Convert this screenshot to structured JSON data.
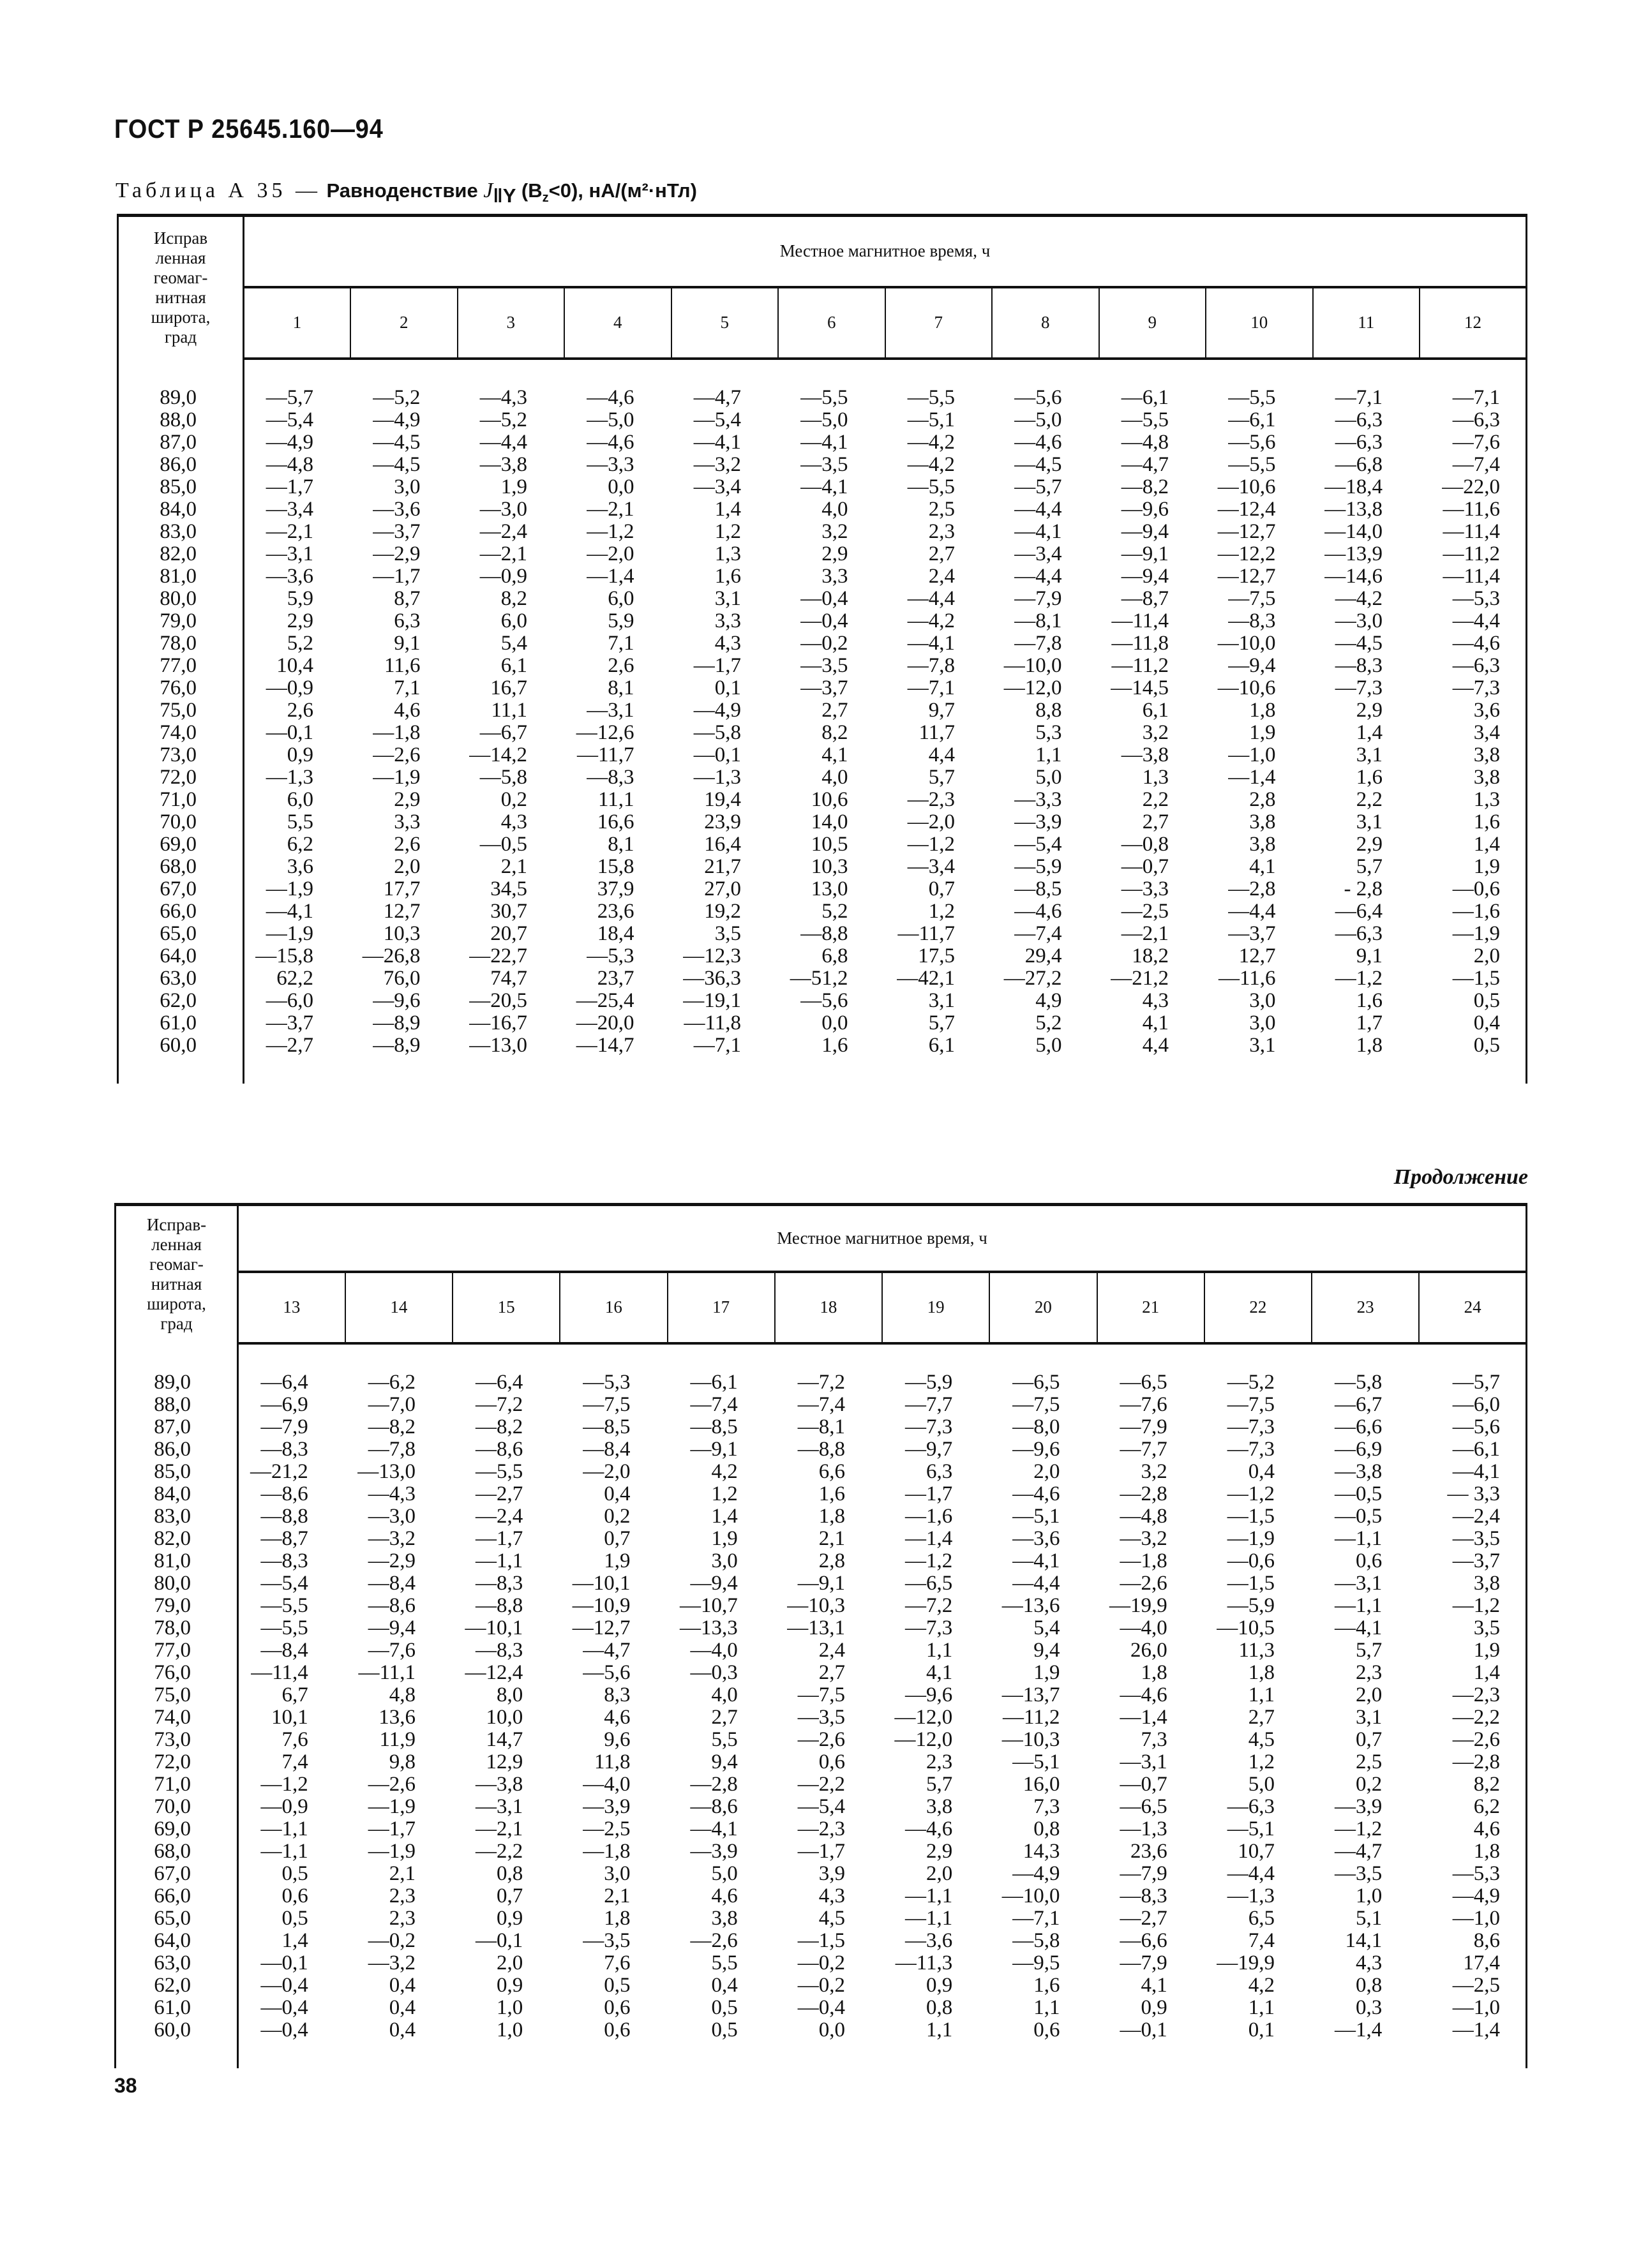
{
  "document": {
    "title": "ГОСТ Р 25645.160—94",
    "page_number": "38",
    "continuation": "Продолжение"
  },
  "caption": {
    "prefix": "Таблица А 35 —",
    "title": "Равноденствие",
    "symbol": "J",
    "symbol_sub": "‖Y",
    "cond_open": "(B",
    "cond_sub": "z",
    "cond_rest": "<0),",
    "units": "нА/(м²·нТл)"
  },
  "table1": {
    "lat_header": "Исправ\nленная\nгеомаг-\nнитная\nширота,\nград",
    "group_header": "Местное магнитное время, ч",
    "hours": [
      "1",
      "2",
      "3",
      "4",
      "5",
      "6",
      "7",
      "8",
      "9",
      "10",
      "11",
      "12"
    ],
    "rows": [
      {
        "lat": "89,0",
        "values": [
          "—5,7",
          "—5,2",
          "—4,3",
          "—4,6",
          "—4,7",
          "—5,5",
          "—5,5",
          "—5,6",
          "—6,1",
          "—5,5",
          "—7,1",
          "—7,1"
        ]
      },
      {
        "lat": "88,0",
        "values": [
          "—5,4",
          "—4,9",
          "—5,2",
          "—5,0",
          "—5,4",
          "—5,0",
          "—5,1",
          "—5,0",
          "—5,5",
          "—6,1",
          "—6,3",
          "—6,3"
        ]
      },
      {
        "lat": "87,0",
        "values": [
          "—4,9",
          "—4,5",
          "—4,4",
          "—4,6",
          "—4,1",
          "—4,1",
          "—4,2",
          "—4,6",
          "—4,8",
          "—5,6",
          "—6,3",
          "—7,6"
        ]
      },
      {
        "lat": "86,0",
        "values": [
          "—4,8",
          "—4,5",
          "—3,8",
          "—3,3",
          "—3,2",
          "—3,5",
          "—4,2",
          "—4,5",
          "—4,7",
          "—5,5",
          "—6,8",
          "—7,4"
        ]
      },
      {
        "lat": "85,0",
        "values": [
          "—1,7",
          "3,0",
          "1,9",
          "0,0",
          "—3,4",
          "—4,1",
          "—5,5",
          "—5,7",
          "—8,2",
          "—10,6",
          "—18,4",
          "—22,0"
        ]
      },
      {
        "lat": "84,0",
        "values": [
          "—3,4",
          "—3,6",
          "—3,0",
          "—2,1",
          "1,4",
          "4,0",
          "2,5",
          "—4,4",
          "—9,6",
          "—12,4",
          "—13,8",
          "—11,6"
        ]
      },
      {
        "lat": "83,0",
        "values": [
          "—2,1",
          "—3,7",
          "—2,4",
          "—1,2",
          "1,2",
          "3,2",
          "2,3",
          "—4,1",
          "—9,4",
          "—12,7",
          "—14,0",
          "—11,4"
        ]
      },
      {
        "lat": "82,0",
        "values": [
          "—3,1",
          "—2,9",
          "—2,1",
          "—2,0",
          "1,3",
          "2,9",
          "2,7",
          "—3,4",
          "—9,1",
          "—12,2",
          "—13,9",
          "—11,2"
        ]
      },
      {
        "lat": "81,0",
        "values": [
          "—3,6",
          "—1,7",
          "—0,9",
          "—1,4",
          "1,6",
          "3,3",
          "2,4",
          "—4,4",
          "—9,4",
          "—12,7",
          "—14,6",
          "—11,4"
        ]
      },
      {
        "lat": "80,0",
        "values": [
          "5,9",
          "8,7",
          "8,2",
          "6,0",
          "3,1",
          "—0,4",
          "—4,4",
          "—7,9",
          "—8,7",
          "—7,5",
          "—4,2",
          "—5,3"
        ]
      },
      {
        "lat": "79,0",
        "values": [
          "2,9",
          "6,3",
          "6,0",
          "5,9",
          "3,3",
          "—0,4",
          "—4,2",
          "—8,1",
          "—11,4",
          "—8,3",
          "—3,0",
          "—4,4"
        ]
      },
      {
        "lat": "78,0",
        "values": [
          "5,2",
          "9,1",
          "5,4",
          "7,1",
          "4,3",
          "—0,2",
          "—4,1",
          "—7,8",
          "—11,8",
          "—10,0",
          "—4,5",
          "—4,6"
        ]
      },
      {
        "lat": "77,0",
        "values": [
          "10,4",
          "11,6",
          "6,1",
          "2,6",
          "—1,7",
          "—3,5",
          "—7,8",
          "—10,0",
          "—11,2",
          "—9,4",
          "—8,3",
          "—6,3"
        ]
      },
      {
        "lat": "76,0",
        "values": [
          "—0,9",
          "7,1",
          "16,7",
          "8,1",
          "0,1",
          "—3,7",
          "—7,1",
          "—12,0",
          "—14,5",
          "—10,6",
          "—7,3",
          "—7,3"
        ]
      },
      {
        "lat": "75,0",
        "values": [
          "2,6",
          "4,6",
          "11,1",
          "—3,1",
          "—4,9",
          "2,7",
          "9,7",
          "8,8",
          "6,1",
          "1,8",
          "2,9",
          "3,6"
        ]
      },
      {
        "lat": "74,0",
        "values": [
          "—0,1",
          "—1,8",
          "—6,7",
          "—12,6",
          "—5,8",
          "8,2",
          "11,7",
          "5,3",
          "3,2",
          "1,9",
          "1,4",
          "3,4"
        ]
      },
      {
        "lat": "73,0",
        "values": [
          "0,9",
          "—2,6",
          "—14,2",
          "—11,7",
          "—0,1",
          "4,1",
          "4,4",
          "1,1",
          "—3,8",
          "—1,0",
          "3,1",
          "3,8"
        ]
      },
      {
        "lat": "72,0",
        "values": [
          "—1,3",
          "—1,9",
          "—5,8",
          "—8,3",
          "—1,3",
          "4,0",
          "5,7",
          "5,0",
          "1,3",
          "—1,4",
          "1,6",
          "3,8"
        ]
      },
      {
        "lat": "71,0",
        "values": [
          "6,0",
          "2,9",
          "0,2",
          "11,1",
          "19,4",
          "10,6",
          "—2,3",
          "—3,3",
          "2,2",
          "2,8",
          "2,2",
          "1,3"
        ]
      },
      {
        "lat": "70,0",
        "values": [
          "5,5",
          "3,3",
          "4,3",
          "16,6",
          "23,9",
          "14,0",
          "—2,0",
          "—3,9",
          "2,7",
          "3,8",
          "3,1",
          "1,6"
        ]
      },
      {
        "lat": "69,0",
        "values": [
          "6,2",
          "2,6",
          "—0,5",
          "8,1",
          "16,4",
          "10,5",
          "—1,2",
          "—5,4",
          "—0,8",
          "3,8",
          "2,9",
          "1,4"
        ]
      },
      {
        "lat": "68,0",
        "values": [
          "3,6",
          "2,0",
          "2,1",
          "15,8",
          "21,7",
          "10,3",
          "—3,4",
          "—5,9",
          "—0,7",
          "4,1",
          "5,7",
          "1,9"
        ]
      },
      {
        "lat": "67,0",
        "values": [
          "—1,9",
          "17,7",
          "34,5",
          "37,9",
          "27,0",
          "13,0",
          "0,7",
          "—8,5",
          "—3,3",
          "—2,8",
          "- 2,8",
          "—0,6"
        ]
      },
      {
        "lat": "66,0",
        "values": [
          "—4,1",
          "12,7",
          "30,7",
          "23,6",
          "19,2",
          "5,2",
          "1,2",
          "—4,6",
          "—2,5",
          "—4,4",
          "—6,4",
          "—1,6"
        ]
      },
      {
        "lat": "65,0",
        "values": [
          "—1,9",
          "10,3",
          "20,7",
          "18,4",
          "3,5",
          "—8,8",
          "—11,7",
          "—7,4",
          "—2,1",
          "—3,7",
          "—6,3",
          "—1,9"
        ]
      },
      {
        "lat": "64,0",
        "values": [
          "—15,8",
          "—26,8",
          "—22,7",
          "—5,3",
          "—12,3",
          "6,8",
          "17,5",
          "29,4",
          "18,2",
          "12,7",
          "9,1",
          "2,0"
        ]
      },
      {
        "lat": "63,0",
        "values": [
          "62,2",
          "76,0",
          "74,7",
          "23,7",
          "—36,3",
          "—51,2",
          "—42,1",
          "—27,2",
          "—21,2",
          "—11,6",
          "—1,2",
          "—1,5"
        ]
      },
      {
        "lat": "62,0",
        "values": [
          "—6,0",
          "—9,6",
          "—20,5",
          "—25,4",
          "—19,1",
          "—5,6",
          "3,1",
          "4,9",
          "4,3",
          "3,0",
          "1,6",
          "0,5"
        ]
      },
      {
        "lat": "61,0",
        "values": [
          "—3,7",
          "—8,9",
          "—16,7",
          "—20,0",
          "—11,8",
          "0,0",
          "5,7",
          "5,2",
          "4,1",
          "3,0",
          "1,7",
          "0,4"
        ]
      },
      {
        "lat": "60,0",
        "values": [
          "—2,7",
          "—8,9",
          "—13,0",
          "—14,7",
          "—7,1",
          "1,6",
          "6,1",
          "5,0",
          "4,4",
          "3,1",
          "1,8",
          "0,5"
        ]
      }
    ]
  },
  "table2": {
    "lat_header": "Исправ-\nленная\nгеомаг-\nнитная\nширота,\nград",
    "group_header": "Местное магнитное время, ч",
    "hours": [
      "13",
      "14",
      "15",
      "16",
      "17",
      "18",
      "19",
      "20",
      "21",
      "22",
      "23",
      "24"
    ],
    "rows": [
      {
        "lat": "89,0",
        "values": [
          "—6,4",
          "—6,2",
          "—6,4",
          "—5,3",
          "—6,1",
          "—7,2",
          "—5,9",
          "—6,5",
          "—6,5",
          "—5,2",
          "—5,8",
          "—5,7"
        ]
      },
      {
        "lat": "88,0",
        "values": [
          "—6,9",
          "—7,0",
          "—7,2",
          "—7,5",
          "—7,4",
          "—7,4",
          "—7,7",
          "—7,5",
          "—7,6",
          "—7,5",
          "—6,7",
          "—6,0"
        ]
      },
      {
        "lat": "87,0",
        "values": [
          "—7,9",
          "—8,2",
          "—8,2",
          "—8,5",
          "—8,5",
          "—8,1",
          "—7,3",
          "—8,0",
          "—7,9",
          "—7,3",
          "—6,6",
          "—5,6"
        ]
      },
      {
        "lat": "86,0",
        "values": [
          "—8,3",
          "—7,8",
          "—8,6",
          "—8,4",
          "—9,1",
          "—8,8",
          "—9,7",
          "—9,6",
          "—7,7",
          "—7,3",
          "—6,9",
          "—6,1"
        ]
      },
      {
        "lat": "85,0",
        "values": [
          "—21,2",
          "—13,0",
          "—5,5",
          "—2,0",
          "4,2",
          "6,6",
          "6,3",
          "2,0",
          "3,2",
          "0,4",
          "—3,8",
          "—4,1"
        ]
      },
      {
        "lat": "84,0",
        "values": [
          "—8,6",
          "—4,3",
          "—2,7",
          "0,4",
          "1,2",
          "1,6",
          "—1,7",
          "—4,6",
          "—2,8",
          "—1,2",
          "—0,5",
          "— 3,3"
        ]
      },
      {
        "lat": "83,0",
        "values": [
          "—8,8",
          "—3,0",
          "—2,4",
          "0,2",
          "1,4",
          "1,8",
          "—1,6",
          "—5,1",
          "—4,8",
          "—1,5",
          "—0,5",
          "—2,4"
        ]
      },
      {
        "lat": "82,0",
        "values": [
          "—8,7",
          "—3,2",
          "—1,7",
          "0,7",
          "1,9",
          "2,1",
          "—1,4",
          "—3,6",
          "—3,2",
          "—1,9",
          "—1,1",
          "—3,5"
        ]
      },
      {
        "lat": "81,0",
        "values": [
          "—8,3",
          "—2,9",
          "—1,1",
          "1,9",
          "3,0",
          "2,8",
          "—1,2",
          "—4,1",
          "—1,8",
          "—0,6",
          "0,6",
          "—3,7"
        ]
      },
      {
        "lat": "80,0",
        "values": [
          "—5,4",
          "—8,4",
          "—8,3",
          "—10,1",
          "—9,4",
          "—9,1",
          "—6,5",
          "—4,4",
          "—2,6",
          "—1,5",
          "—3,1",
          "3,8"
        ]
      },
      {
        "lat": "79,0",
        "values": [
          "—5,5",
          "—8,6",
          "—8,8",
          "—10,9",
          "—10,7",
          "—10,3",
          "—7,2",
          "—13,6",
          "—19,9",
          "—5,9",
          "—1,1",
          "—1,2"
        ]
      },
      {
        "lat": "78,0",
        "values": [
          "—5,5",
          "—9,4",
          "—10,1",
          "—12,7",
          "—13,3",
          "—13,1",
          "—7,3",
          "5,4",
          "—4,0",
          "—10,5",
          "—4,1",
          "3,5"
        ]
      },
      {
        "lat": "77,0",
        "values": [
          "—8,4",
          "—7,6",
          "—8,3",
          "—4,7",
          "—4,0",
          "2,4",
          "1,1",
          "9,4",
          "26,0",
          "11,3",
          "5,7",
          "1,9"
        ]
      },
      {
        "lat": "76,0",
        "values": [
          "—11,4",
          "—11,1",
          "—12,4",
          "—5,6",
          "—0,3",
          "2,7",
          "4,1",
          "1,9",
          "1,8",
          "1,8",
          "2,3",
          "1,4"
        ]
      },
      {
        "lat": "75,0",
        "values": [
          "6,7",
          "4,8",
          "8,0",
          "8,3",
          "4,0",
          "—7,5",
          "—9,6",
          "—13,7",
          "—4,6",
          "1,1",
          "2,0",
          "—2,3"
        ]
      },
      {
        "lat": "74,0",
        "values": [
          "10,1",
          "13,6",
          "10,0",
          "4,6",
          "2,7",
          "—3,5",
          "—12,0",
          "—11,2",
          "—1,4",
          "2,7",
          "3,1",
          "—2,2"
        ]
      },
      {
        "lat": "73,0",
        "values": [
          "7,6",
          "11,9",
          "14,7",
          "9,6",
          "5,5",
          "—2,6",
          "—12,0",
          "—10,3",
          "7,3",
          "4,5",
          "0,7",
          "—2,6"
        ]
      },
      {
        "lat": "72,0",
        "values": [
          "7,4",
          "9,8",
          "12,9",
          "11,8",
          "9,4",
          "0,6",
          "2,3",
          "—5,1",
          "—3,1",
          "1,2",
          "2,5",
          "—2,8"
        ]
      },
      {
        "lat": "71,0",
        "values": [
          "—1,2",
          "—2,6",
          "—3,8",
          "—4,0",
          "—2,8",
          "—2,2",
          "5,7",
          "16,0",
          "—0,7",
          "5,0",
          "0,2",
          "8,2"
        ]
      },
      {
        "lat": "70,0",
        "values": [
          "—0,9",
          "—1,9",
          "—3,1",
          "—3,9",
          "—8,6",
          "—5,4",
          "3,8",
          "7,3",
          "—6,5",
          "—6,3",
          "—3,9",
          "6,2"
        ]
      },
      {
        "lat": "69,0",
        "values": [
          "—1,1",
          "—1,7",
          "—2,1",
          "—2,5",
          "—4,1",
          "—2,3",
          "—4,6",
          "0,8",
          "—1,3",
          "—5,1",
          "—1,2",
          "4,6"
        ]
      },
      {
        "lat": "68,0",
        "values": [
          "—1,1",
          "—1,9",
          "—2,2",
          "—1,8",
          "—3,9",
          "—1,7",
          "2,9",
          "14,3",
          "23,6",
          "10,7",
          "—4,7",
          "1,8"
        ]
      },
      {
        "lat": "67,0",
        "values": [
          "0,5",
          "2,1",
          "0,8",
          "3,0",
          "5,0",
          "3,9",
          "2,0",
          "—4,9",
          "—7,9",
          "—4,4",
          "—3,5",
          "—5,3"
        ]
      },
      {
        "lat": "66,0",
        "values": [
          "0,6",
          "2,3",
          "0,7",
          "2,1",
          "4,6",
          "4,3",
          "—1,1",
          "—10,0",
          "—8,3",
          "—1,3",
          "1,0",
          "—4,9"
        ]
      },
      {
        "lat": "65,0",
        "values": [
          "0,5",
          "2,3",
          "0,9",
          "1,8",
          "3,8",
          "4,5",
          "—1,1",
          "—7,1",
          "—2,7",
          "6,5",
          "5,1",
          "—1,0"
        ]
      },
      {
        "lat": "64,0",
        "values": [
          "1,4",
          "—0,2",
          "—0,1",
          "—3,5",
          "—2,6",
          "—1,5",
          "—3,6",
          "—5,8",
          "—6,6",
          "7,4",
          "14,1",
          "8,6"
        ]
      },
      {
        "lat": "63,0",
        "values": [
          "—0,1",
          "—3,2",
          "2,0",
          "7,6",
          "5,5",
          "—0,2",
          "—11,3",
          "—9,5",
          "—7,9",
          "—19,9",
          "4,3",
          "17,4"
        ]
      },
      {
        "lat": "62,0",
        "values": [
          "—0,4",
          "0,4",
          "0,9",
          "0,5",
          "0,4",
          "—0,2",
          "0,9",
          "1,6",
          "4,1",
          "4,2",
          "0,8",
          "—2,5"
        ]
      },
      {
        "lat": "61,0",
        "values": [
          "—0,4",
          "0,4",
          "1,0",
          "0,6",
          "0,5",
          "—0,4",
          "0,8",
          "1,1",
          "0,9",
          "1,1",
          "0,3",
          "—1,0"
        ]
      },
      {
        "lat": "60,0",
        "values": [
          "—0,4",
          "0,4",
          "1,0",
          "0,6",
          "0,5",
          "0,0",
          "1,1",
          "0,6",
          "—0,1",
          "0,1",
          "—1,4",
          "—1,4"
        ]
      }
    ]
  }
}
